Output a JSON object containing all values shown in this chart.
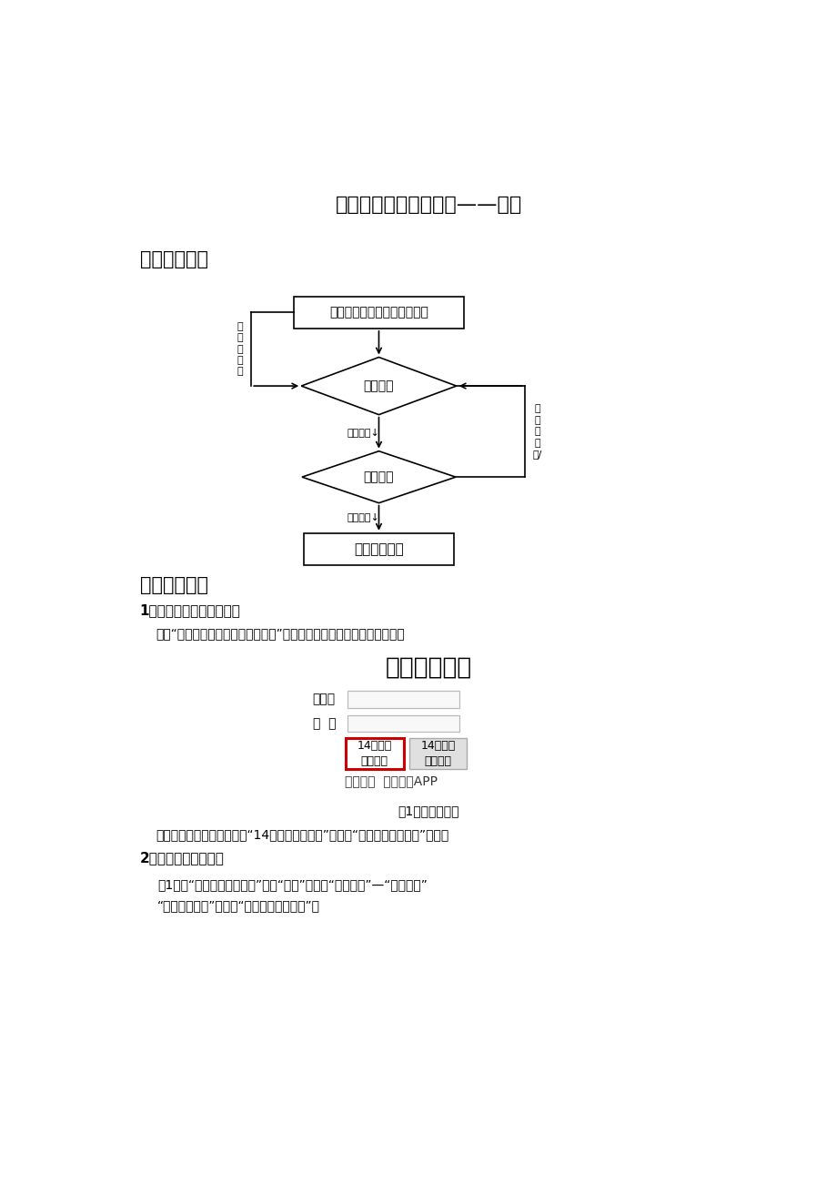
{
  "title": "统考异地报名操作指南——学生",
  "section1": "一、办理流程",
  "section2": "二、操作步骤",
  "step1_title": "1、登录统考异地报名系统",
  "step1_body": "登录“北京外国语大学网络教育学院”官网，网址为：，从以下位置登陆。",
  "login_title": "学历平台登录",
  "username_label": "用户名",
  "password_label": "密  码",
  "btn1_line1": "14秋届及",
  "btn1_line2": "以后登录",
  "btn2_line1": "14春届及",
  "btn2_line2": "以前登录",
  "link_text": "录取查询  移动学习APP",
  "fig_caption": "图1选择登录界面",
  "step2_intro": "输入用户名和密码后，选择“14秋届及以后登陆”进入到“北外网院学习平台”界面。",
  "step2_title": "2、统考异地报名操作",
  "step2_body1": "（1）在“北外网院学习平台”界面“导航”处选择“考试管理”—“统考报名”",
  "step2_body2": "“统考异地报名”进入到“统考异地报名界面”。",
  "fc_box1": "学习平台申请，上传证明材料",
  "fc_diamond1": "学习中心",
  "fc_diamond2": "学院总部",
  "fc_box2": "查看申请结果",
  "fc_label_left": "审核未通过",
  "fc_label_right": "审核未通过/",
  "fc_label_mid1": "审核通过",
  "fc_label_mid2": "审核通过",
  "bg_color": "#ffffff",
  "text_color": "#000000"
}
